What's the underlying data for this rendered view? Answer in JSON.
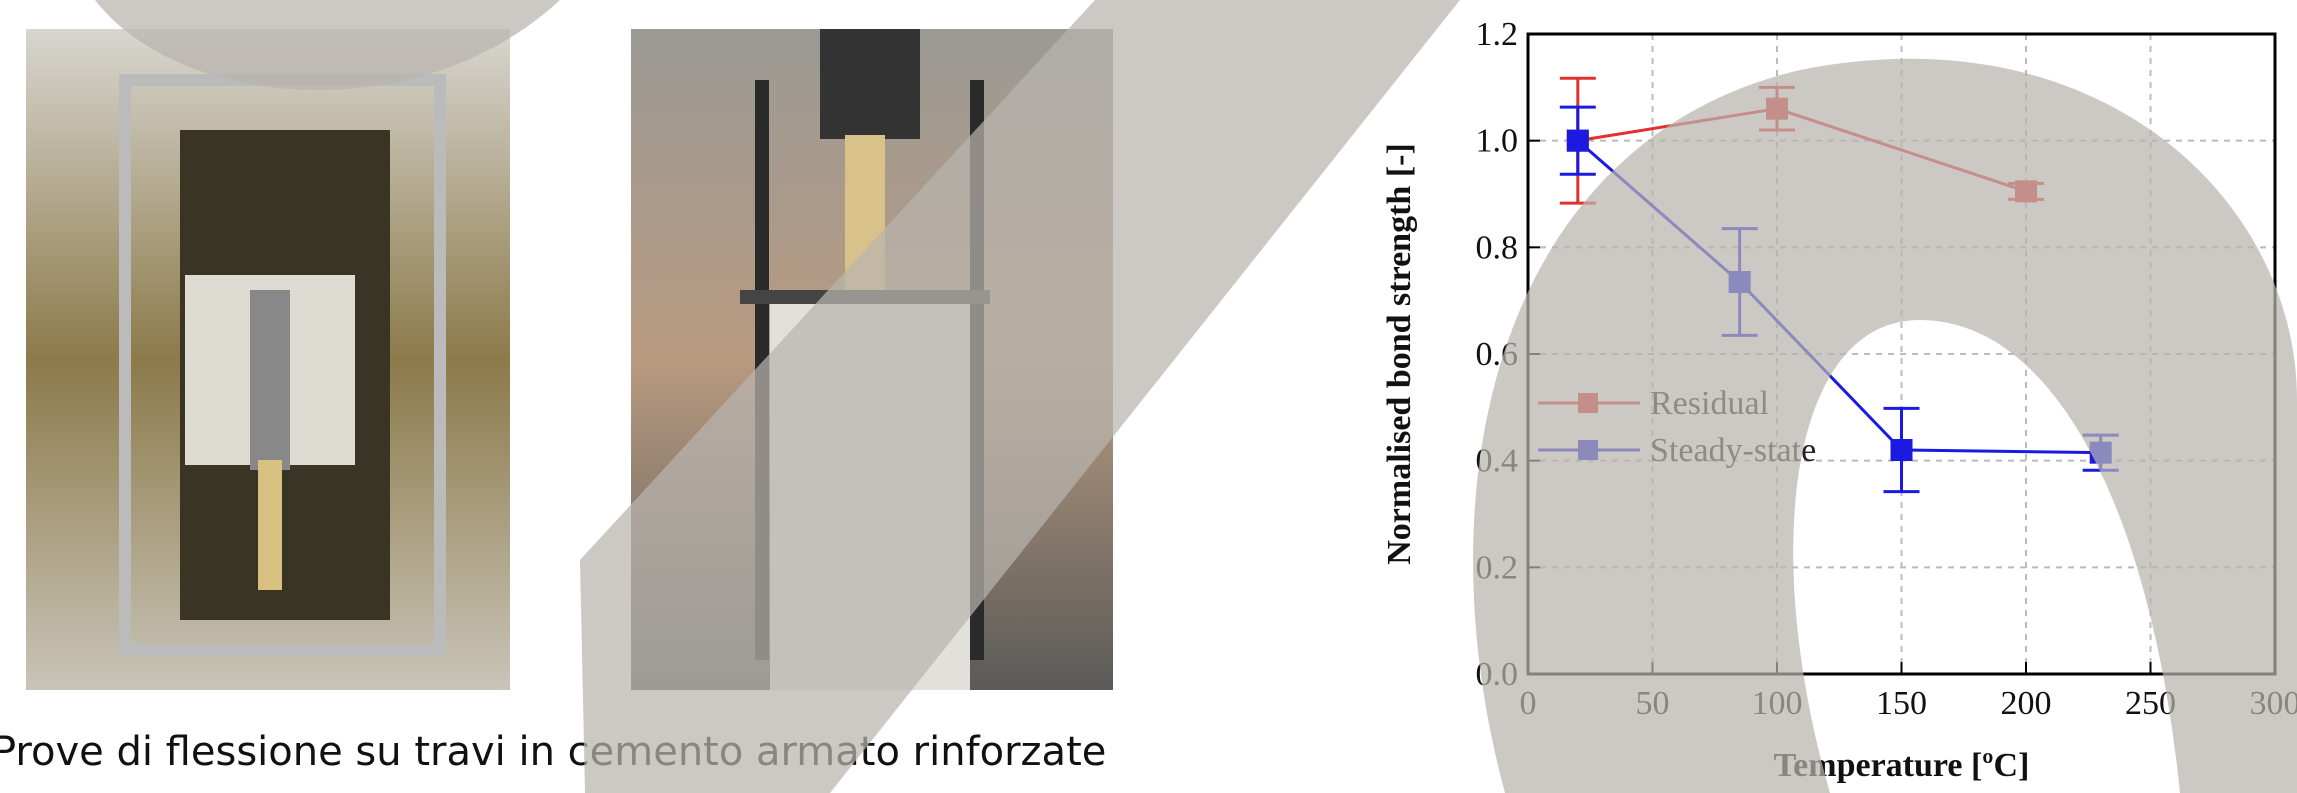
{
  "caption": "Prove di flessione su travi in cemento armato rinforzate",
  "chart_data": {
    "type": "line",
    "xlabel": "Temperature [ºC]",
    "ylabel": "Normalised bond strength [-]",
    "xlim": [
      0,
      300
    ],
    "xticks": [
      0,
      50,
      100,
      150,
      200,
      250,
      300
    ],
    "ylim": [
      0,
      1.2
    ],
    "yticks": [
      {
        "value": 0,
        "label": "0.0"
      },
      0.2,
      0.4,
      0.6,
      0.8,
      {
        "value": 1,
        "label": "1.0"
      },
      1.2
    ],
    "grid": true,
    "legend": "left",
    "series": [
      {
        "name": "Residual",
        "color": "#e03030",
        "x": [
          20,
          100,
          200
        ],
        "values": [
          1.0,
          1.06,
          0.905
        ],
        "errors": [
          0.117,
          0.04,
          0.015
        ]
      },
      {
        "name": "Steady-state",
        "color": "#1a1ae0",
        "x": [
          20,
          85,
          150,
          230
        ],
        "values": [
          1.0,
          0.735,
          0.42,
          0.415
        ],
        "errors": [
          0.063,
          0.1,
          0.078,
          0.033
        ]
      }
    ]
  }
}
